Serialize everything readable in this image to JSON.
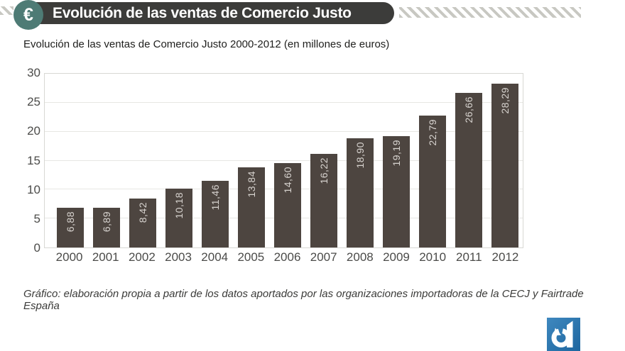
{
  "header": {
    "icon": "euro-icon",
    "icon_glyph": "€",
    "title": "Evolución de las ventas de Comercio Justo",
    "bar_color": "#3c3c3a",
    "icon_circle_color": "#4e7b75",
    "stripe_color": "#c8c8c2"
  },
  "chart_data": {
    "type": "bar",
    "title": "Evolución de las ventas de Comercio Justo 2000-2012 (en millones de euros)",
    "categories": [
      "2000",
      "2001",
      "2002",
      "2003",
      "2004",
      "2005",
      "2006",
      "2007",
      "2008",
      "2009",
      "2010",
      "2011",
      "2012"
    ],
    "values": [
      6.88,
      6.89,
      8.42,
      10.18,
      11.46,
      13.84,
      14.6,
      16.22,
      18.9,
      19.19,
      22.79,
      26.66,
      28.29
    ],
    "values_display": [
      "6,88",
      "6,89",
      "8,42",
      "10,18",
      "11,46",
      "13,84",
      "14,60",
      "16,22",
      "18,90",
      "19,19",
      "22,79",
      "26,66",
      "28,29"
    ],
    "xlabel": "",
    "ylabel": "",
    "ylim": [
      0,
      30
    ],
    "yticks": [
      0,
      5,
      10,
      15,
      20,
      25,
      30
    ],
    "grid": true,
    "legend": null,
    "bar_color": "#4d4540",
    "bar_label_color": "#d8d4d0",
    "value_label_orientation": "vertical-bottom-to-top"
  },
  "footer": {
    "credit": "Gráfico: elaboración propia a partir de los datos aportados por las organizaciones importadoras de la CECJ y Fairtrade España"
  },
  "logo": {
    "name": "eldiario.es",
    "glyph": "d",
    "color_top": "#3f88bf",
    "color_bottom": "#1d669f"
  }
}
